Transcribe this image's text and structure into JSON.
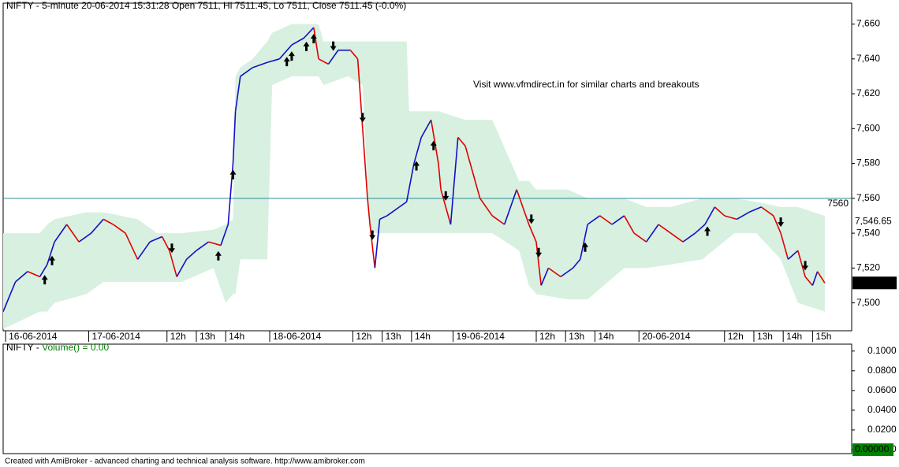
{
  "title": "NIFTY - 5-minute 20-06-2014 15:31:28 Open 7511, Hi 7511.45, Lo 7511, Close 7511.45 (-0.0%)",
  "annotation": "Visit www.vfmdirect.in for similar charts and breakouts",
  "footer": "Created with AmiBroker - advanced charting and technical analysis software. http://www.amibroker.com",
  "chart_data": [
    {
      "type": "line",
      "xlim": [
        0,
        347
      ],
      "ylim": [
        7484,
        7672
      ],
      "yticks": [
        {
          "value": 7500,
          "label": "7,500"
        },
        {
          "value": 7520,
          "label": "7,520"
        },
        {
          "value": 7540,
          "label": "7,540"
        },
        {
          "value": 7560,
          "label": "7,560"
        },
        {
          "value": 7580,
          "label": "7,580"
        },
        {
          "value": 7600,
          "label": "7,600"
        },
        {
          "value": 7620,
          "label": "7,620"
        },
        {
          "value": 7640,
          "label": "7,640"
        },
        {
          "value": 7660,
          "label": "7,660"
        }
      ],
      "xticks": [
        {
          "value": 1,
          "label": "16-06-2014"
        },
        {
          "value": 35,
          "label": "17-06-2014"
        },
        {
          "value": 67,
          "label": "12h"
        },
        {
          "value": 79,
          "label": "13h"
        },
        {
          "value": 91,
          "label": "14h"
        },
        {
          "value": 109,
          "label": "18-06-2014"
        },
        {
          "value": 143,
          "label": "12h"
        },
        {
          "value": 155,
          "label": "13h"
        },
        {
          "value": 167,
          "label": "14h"
        },
        {
          "value": 184,
          "label": "19-06-2014"
        },
        {
          "value": 218,
          "label": "12h"
        },
        {
          "value": 230,
          "label": "13h"
        },
        {
          "value": 242,
          "label": "14h"
        },
        {
          "value": 260,
          "label": "20-06-2014"
        },
        {
          "value": 295,
          "label": "12h"
        },
        {
          "value": 307,
          "label": "13h"
        },
        {
          "value": 319,
          "label": "14h"
        },
        {
          "value": 331,
          "label": "15h"
        }
      ],
      "series": [
        {
          "name": "NIFTY",
          "up_color": "#1010c8",
          "down_color": "#e00000",
          "x": [
            0,
            5,
            10,
            15,
            18,
            21,
            26,
            31,
            36,
            41,
            45,
            50,
            55,
            60,
            65,
            68,
            71,
            75,
            79,
            84,
            89,
            92,
            94,
            95,
            97,
            102,
            108,
            113,
            118,
            123,
            127,
            129,
            133,
            137,
            142,
            145,
            147,
            149,
            150,
            152,
            154,
            157,
            162,
            165,
            168,
            171,
            175,
            178,
            179,
            183,
            186,
            189,
            192,
            195,
            200,
            205,
            210,
            215,
            218,
            220,
            223,
            228,
            233,
            236,
            239,
            244,
            249,
            254,
            258,
            263,
            268,
            273,
            278,
            283,
            287,
            291,
            295,
            300,
            305,
            310,
            315,
            318,
            321,
            325,
            328,
            331,
            333,
            336
          ],
          "values": [
            7495,
            7512,
            7518,
            7515,
            7522,
            7535,
            7545,
            7535,
            7540,
            7548,
            7545,
            7540,
            7525,
            7535,
            7538,
            7530,
            7515,
            7525,
            7530,
            7535,
            7533,
            7545,
            7580,
            7610,
            7630,
            7635,
            7638,
            7640,
            7648,
            7652,
            7658,
            7640,
            7637,
            7645,
            7645,
            7640,
            7600,
            7560,
            7545,
            7520,
            7548,
            7550,
            7555,
            7558,
            7580,
            7595,
            7605,
            7580,
            7565,
            7545,
            7595,
            7590,
            7575,
            7560,
            7550,
            7545,
            7565,
            7545,
            7535,
            7510,
            7520,
            7515,
            7520,
            7525,
            7545,
            7550,
            7545,
            7550,
            7540,
            7535,
            7545,
            7540,
            7535,
            7540,
            7545,
            7555,
            7550,
            7548,
            7552,
            7555,
            7550,
            7540,
            7525,
            7530,
            7515,
            7510,
            7518,
            7511.45
          ]
        }
      ],
      "band": {
        "color": "#d8f0e0",
        "x": [
          0,
          15,
          18,
          21,
          34,
          41,
          55,
          63,
          73,
          86,
          91,
          94,
          95,
          97,
          102,
          108,
          110,
          118,
          129,
          131,
          141,
          147,
          150,
          165,
          166,
          175,
          178,
          189,
          200,
          211,
          215,
          218,
          231,
          239,
          254,
          263,
          273,
          286,
          299,
          308,
          318,
          325,
          336
        ],
        "upper": [
          7540,
          7540,
          7545,
          7548,
          7552,
          7552,
          7548,
          7540,
          7540,
          7542,
          7545,
          7548,
          7630,
          7635,
          7640,
          7650,
          7655,
          7660,
          7660,
          7650,
          7650,
          7650,
          7650,
          7650,
          7610,
          7610,
          7610,
          7605,
          7605,
          7570,
          7570,
          7565,
          7565,
          7560,
          7560,
          7555,
          7555,
          7560,
          7560,
          7558,
          7555,
          7555,
          7550
        ],
        "lower": [
          7485,
          7495,
          7495,
          7500,
          7505,
          7512,
          7512,
          7512,
          7512,
          7520,
          7500,
          7505,
          7505,
          7525,
          7525,
          7525,
          7625,
          7630,
          7630,
          7625,
          7630,
          7625,
          7540,
          7540,
          7540,
          7540,
          7540,
          7540,
          7540,
          7530,
          7510,
          7505,
          7502,
          7502,
          7520,
          7520,
          7522,
          7525,
          7540,
          7540,
          7525,
          7500,
          7495
        ]
      },
      "buy_signals": [
        17,
        20,
        88,
        94,
        116,
        118,
        124,
        127,
        169,
        176,
        238,
        288
      ],
      "sell_signals": [
        69,
        135,
        147,
        151,
        181,
        216,
        219,
        318,
        328
      ],
      "hline": {
        "value": 7560,
        "label": "7560",
        "color": "#2a8a9a"
      },
      "price_labels": [
        {
          "value": 7546.65,
          "label": "7,546.65"
        },
        {
          "value": 7511.45,
          "label": "7,511.45"
        }
      ]
    },
    {
      "type": "volume",
      "title_prefix": "NIFTY - ",
      "title": "Volume() = 0.00",
      "title_color": "#008000",
      "ylim": [
        -0.004,
        0.107
      ],
      "yticks": [
        {
          "value": 0,
          "label": "0.0000"
        },
        {
          "value": 0.02,
          "label": "0.0200"
        },
        {
          "value": 0.04,
          "label": "0.0400"
        },
        {
          "value": 0.06,
          "label": "0.0600"
        },
        {
          "value": 0.08,
          "label": "0.0800"
        },
        {
          "value": 0.1,
          "label": "0.1000"
        }
      ],
      "last": {
        "value": 0,
        "label": "0.00000",
        "color": "#008000"
      }
    }
  ]
}
